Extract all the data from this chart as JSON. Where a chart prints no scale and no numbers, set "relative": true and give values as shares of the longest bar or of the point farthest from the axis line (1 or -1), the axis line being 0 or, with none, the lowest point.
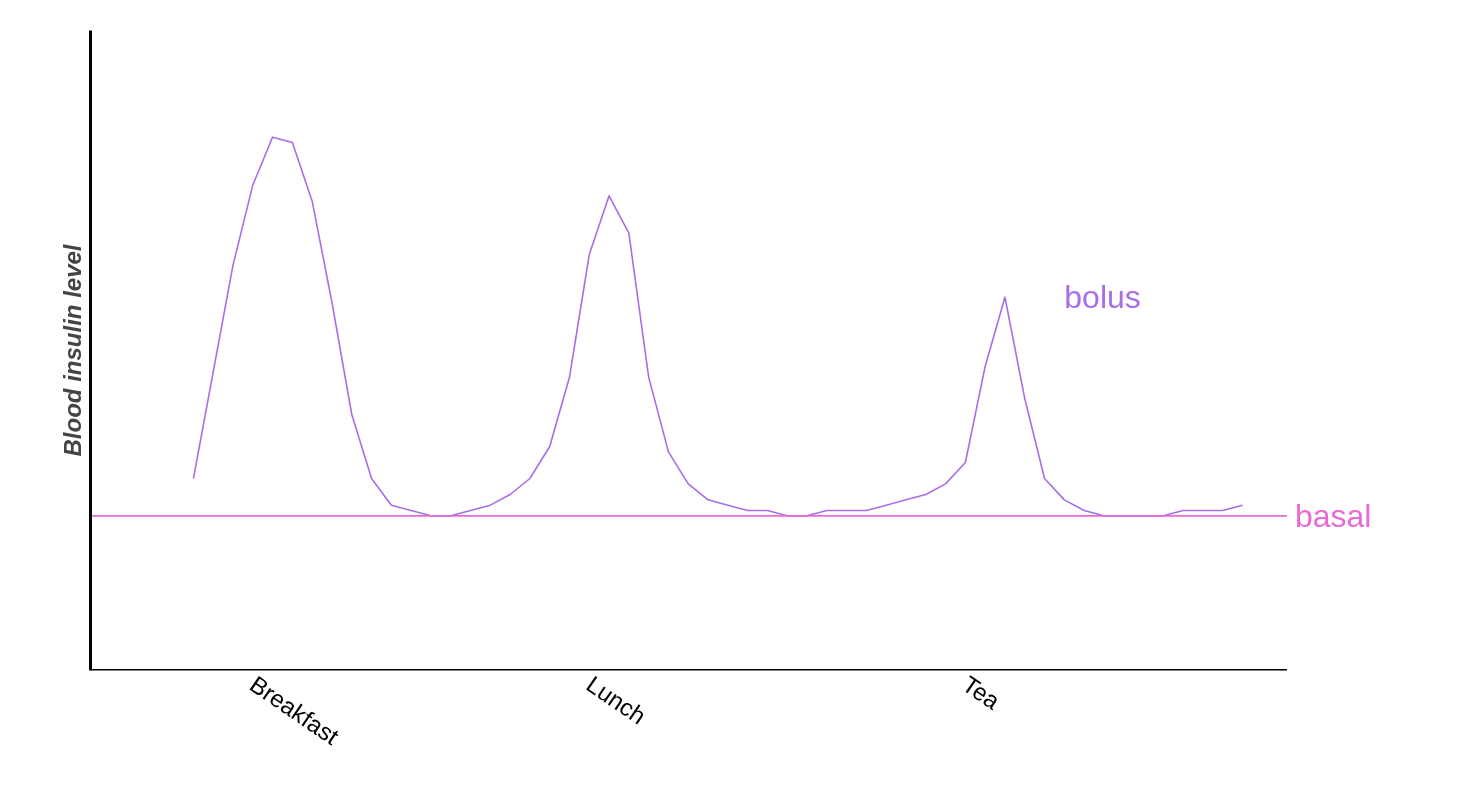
{
  "chart_data": {
    "type": "line",
    "ylabel": "Blood insulin level",
    "relative": true,
    "tick_labels": "x",
    "line_style": "solid",
    "categories": [
      null,
      null,
      null,
      null,
      null,
      null,
      null,
      null,
      "Breakfast",
      null,
      null,
      null,
      null,
      null,
      null,
      null,
      null,
      null,
      null,
      null,
      null,
      null,
      null,
      null,
      null,
      "Lunch",
      null,
      null,
      null,
      null,
      null,
      null,
      null,
      null,
      null,
      null,
      null,
      null,
      null,
      null,
      null,
      null,
      null,
      null,
      "Tea",
      null,
      null,
      null,
      null,
      null,
      null,
      null,
      null,
      null,
      null,
      null,
      null,
      null,
      null,
      null,
      null
    ],
    "series": [
      {
        "name": "bolus",
        "color": "#a86ee6",
        "values": [
          null,
          null,
          null,
          null,
          null,
          0.36,
          0.56,
          0.76,
          0.91,
          1.0,
          0.99,
          0.88,
          0.69,
          0.48,
          0.36,
          0.31,
          0.3,
          0.29,
          0.29,
          0.3,
          0.31,
          0.33,
          0.36,
          0.42,
          0.55,
          0.78,
          0.89,
          0.82,
          0.55,
          0.41,
          0.35,
          0.32,
          0.31,
          0.3,
          0.3,
          0.29,
          0.29,
          0.3,
          0.3,
          0.3,
          0.31,
          0.32,
          0.33,
          0.35,
          0.39,
          0.57,
          0.7,
          0.51,
          0.36,
          0.32,
          0.3,
          0.29,
          0.29,
          0.29,
          0.29,
          0.3,
          0.3,
          0.3,
          0.31,
          null,
          null
        ]
      }
    ],
    "ref_lines": [
      {
        "axis": "y",
        "value": 0.29,
        "label": "basal",
        "color": "#e86ad8"
      }
    ]
  }
}
